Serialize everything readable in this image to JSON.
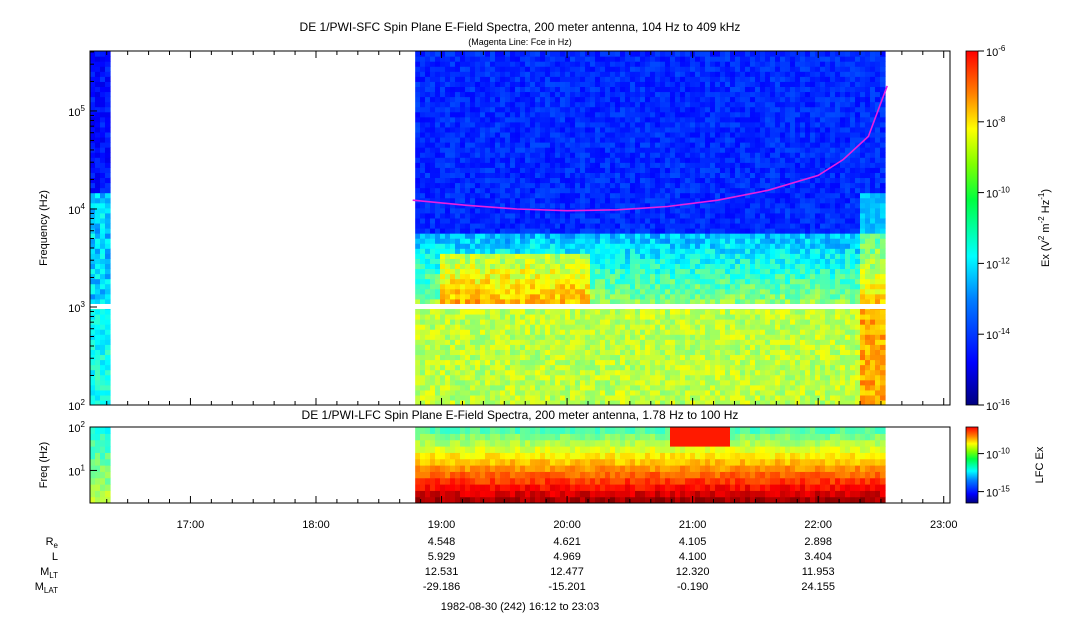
{
  "chart_data": [
    {
      "type": "heatmap",
      "title": "DE 1/PWI-SFC  Spin Plane E-Field Spectra, 200 meter antenna, 104 Hz to 409 kHz",
      "subtitle": "(Magenta Line: Fce in Hz)",
      "ylabel": "Frequency (Hz)",
      "yscale": "log",
      "ylim": [
        100,
        409000
      ],
      "yticks": [
        {
          "value": 100,
          "base": "10",
          "exp": "2"
        },
        {
          "value": 1000,
          "base": "10",
          "exp": "3"
        },
        {
          "value": 10000,
          "base": "10",
          "exp": "4"
        },
        {
          "value": 100000,
          "base": "10",
          "exp": "5"
        }
      ],
      "colorbar": {
        "label_parts": [
          "Ex (V",
          "2",
          " m",
          "-2",
          " Hz",
          "-1",
          ")"
        ],
        "scale": "log",
        "range": [
          1e-16,
          1e-06
        ],
        "ticks": [
          {
            "value": 1e-06,
            "base": "10",
            "exp": "-6"
          },
          {
            "value": 1e-08,
            "base": "10",
            "exp": "-8"
          },
          {
            "value": 1e-10,
            "base": "10",
            "exp": "-10"
          },
          {
            "value": 1e-12,
            "base": "10",
            "exp": "-12"
          },
          {
            "value": 1e-14,
            "base": "10",
            "exp": "-14"
          },
          {
            "value": 1e-16,
            "base": "10",
            "exp": "-16"
          }
        ]
      },
      "data_gaps_hours": [
        [
          16.37,
          18.79
        ]
      ],
      "fce_line": {
        "color": "#e81fe0",
        "points": [
          [
            18.77,
            12300
          ],
          [
            19.2,
            10900
          ],
          [
            19.6,
            10000
          ],
          [
            20.0,
            9600
          ],
          [
            20.4,
            9800
          ],
          [
            20.8,
            10600
          ],
          [
            21.2,
            12300
          ],
          [
            21.6,
            15500
          ],
          [
            22.0,
            22000
          ],
          [
            22.2,
            32000
          ],
          [
            22.4,
            55000
          ],
          [
            22.55,
            180000
          ]
        ]
      }
    },
    {
      "type": "heatmap",
      "title": "DE 1/PWI-LFC  Spin Plane E-Field Spectra, 200 meter antenna, 1.78 Hz to 100 Hz",
      "ylabel": "Freq (Hz)",
      "yscale": "log",
      "ylim": [
        1.78,
        100
      ],
      "yticks": [
        {
          "value": 10,
          "base": "10",
          "exp": "1"
        },
        {
          "value": 100,
          "base": "10",
          "exp": "2"
        }
      ],
      "colorbar": {
        "label": "LFC Ex",
        "scale": "log",
        "ticks": [
          {
            "value": 1e-10,
            "base": "10",
            "exp": "-10"
          },
          {
            "value": 1e-15,
            "base": "10",
            "exp": "-15"
          }
        ]
      },
      "data_gaps_hours": [
        [
          16.37,
          18.79
        ]
      ]
    }
  ],
  "time_axis": {
    "range_hours": [
      16.2,
      23.05
    ],
    "ticks": [
      {
        "hour": 17,
        "label": "17:00"
      },
      {
        "hour": 18,
        "label": "18:00"
      },
      {
        "hour": 19,
        "label": "19:00"
      },
      {
        "hour": 20,
        "label": "20:00"
      },
      {
        "hour": 21,
        "label": "21:00"
      },
      {
        "hour": 22,
        "label": "22:00"
      },
      {
        "hour": 23,
        "label": "23:00"
      }
    ]
  },
  "ephemeris": {
    "columns_hours": [
      19,
      20,
      21,
      22
    ],
    "rows": [
      {
        "name": "Re",
        "main": "R",
        "sub": "e",
        "values": [
          "4.548",
          "4.621",
          "4.105",
          "2.898"
        ]
      },
      {
        "name": "L",
        "main": "L",
        "sub": "",
        "values": [
          "5.929",
          "4.969",
          "4.100",
          "3.404"
        ]
      },
      {
        "name": "MLT",
        "main": "M",
        "sub": "LT",
        "values": [
          "12.531",
          "12.477",
          "12.320",
          "11.953"
        ]
      },
      {
        "name": "MLAT",
        "main": "M",
        "sub": "LAT",
        "values": [
          "-29.186",
          "-15.201",
          "-0.190",
          "24.155"
        ]
      }
    ]
  },
  "footer": "1982-08-30 (242) 16:12 to 23:03"
}
